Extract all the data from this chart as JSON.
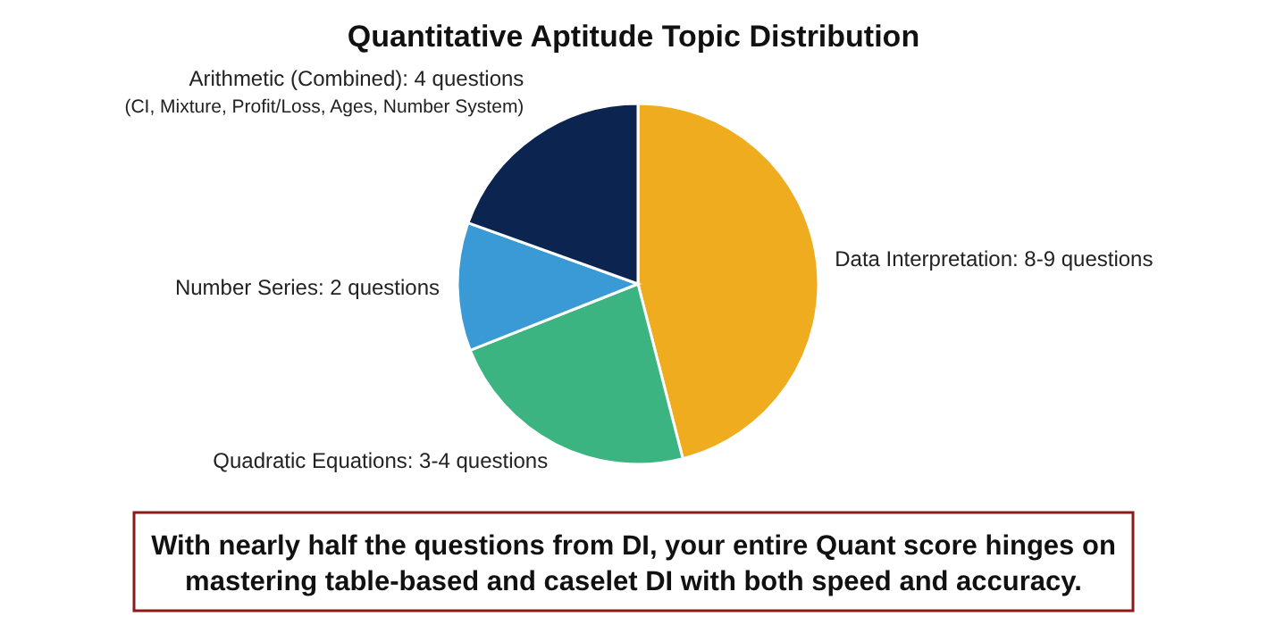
{
  "chart_data": {
    "type": "pie",
    "title": "Quantitative Aptitude Topic Distribution",
    "categories": [
      "Data Interpretation: 8-9 questions",
      "Quadratic Equations: 3-4 questions",
      "Number Series: 2 questions",
      "Arithmetic (Combined): 4 questions\n(CI, Mixture, Profit/Loss, Ages, Number System)"
    ],
    "values": [
      46,
      23,
      11.5,
      19.5
    ],
    "colors": [
      "#f0ac1f",
      "#3cb482",
      "#3a9ad6",
      "#0b2550"
    ],
    "annotations": [
      "With nearly half the questions from DI, your entire Quant score hinges on mastering table-based and caselet DI with both speed and accuracy."
    ]
  }
}
